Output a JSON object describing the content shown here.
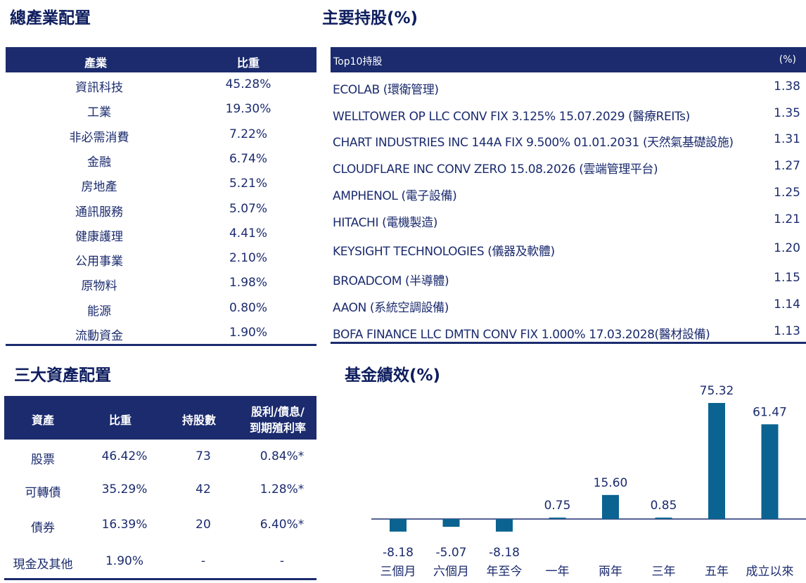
{
  "industry": {
    "title": "總產業配置",
    "header": {
      "col1": "產業",
      "col2": "比重"
    },
    "rows": [
      {
        "name": "資訊科技",
        "weight": "45.28%"
      },
      {
        "name": "工業",
        "weight": "19.30%"
      },
      {
        "name": "非必需消費",
        "weight": "7.22%"
      },
      {
        "name": "金融",
        "weight": "6.74%"
      },
      {
        "name": "房地產",
        "weight": "5.21%"
      },
      {
        "name": "通訊服務",
        "weight": "5.07%"
      },
      {
        "name": "健康護理",
        "weight": "4.41%"
      },
      {
        "name": "公用事業",
        "weight": "2.10%"
      },
      {
        "name": "原物料",
        "weight": "1.98%"
      },
      {
        "name": "能源",
        "weight": "0.80%"
      },
      {
        "name": "流動資金",
        "weight": "1.90%"
      }
    ]
  },
  "holdings": {
    "title": "主要持股(%)",
    "header": {
      "col1": "Top10持股",
      "col2": "(%)"
    },
    "rows": [
      {
        "name": "ECOLAB  (環衛管理)",
        "pct": "1.38"
      },
      {
        "name": "WELLTOWER OP LLC CONV FIX 3.125% 15.07.2029 (醫療REITs)",
        "pct": "1.35"
      },
      {
        "name": "CHART INDUSTRIES INC 144A FIX 9.500% 01.01.2031 (天然氣基礎設施)",
        "pct": "1.31"
      },
      {
        "name": "CLOUDFLARE INC CONV ZERO 15.08.2026 (雲端管理平台)",
        "pct": "1.27"
      },
      {
        "name": "AMPHENOL (電子設備)",
        "pct": "1.25"
      },
      {
        "name": "HITACHI (電機製造)",
        "pct": "1.21"
      },
      {
        "name": "KEYSIGHT TECHNOLOGIES (儀器及軟體)",
        "pct": "1.20"
      },
      {
        "name": "BROADCOM (半導體)",
        "pct": "1.15"
      },
      {
        "name": "AAON  (系統空調設備)",
        "pct": "1.14"
      },
      {
        "name": "BOFA FINANCE LLC DMTN CONV FIX 1.000% 17.03.2028(醫材設備)",
        "pct": "1.13"
      }
    ]
  },
  "assets": {
    "title": "三大資產配置",
    "header": {
      "col1": "資產",
      "col2": "比重",
      "col3": "持股數",
      "col4a": "股利/債息/",
      "col4b": "到期殖利率"
    },
    "rows": [
      {
        "name": "股票",
        "weight": "46.42%",
        "count": "73",
        "yield": "0.84%*"
      },
      {
        "name": "可轉債",
        "weight": "35.29%",
        "count": "42",
        "yield": "1.28%*"
      },
      {
        "name": "債券",
        "weight": "16.39%",
        "count": "20",
        "yield": "6.40%*"
      },
      {
        "name": "現金及其他",
        "weight": "1.90%",
        "count": "-",
        "yield": "-"
      }
    ]
  },
  "performance": {
    "title": "基金績效(%)",
    "bar_color": "#0a6390"
  },
  "chart_data": {
    "type": "bar",
    "title": "基金績效(%)",
    "categories": [
      "三個月",
      "六個月",
      "年至今",
      "一年",
      "兩年",
      "三年",
      "五年",
      "成立以來"
    ],
    "values": [
      -8.18,
      -5.07,
      -8.18,
      0.75,
      15.6,
      0.85,
      75.32,
      61.47
    ],
    "labels": [
      "-8.18",
      "-5.07",
      "-8.18",
      "0.75",
      "15.60",
      "0.85",
      "75.32",
      "61.47"
    ],
    "xlabel": "",
    "ylabel": "",
    "grid": false,
    "legend": "none"
  }
}
